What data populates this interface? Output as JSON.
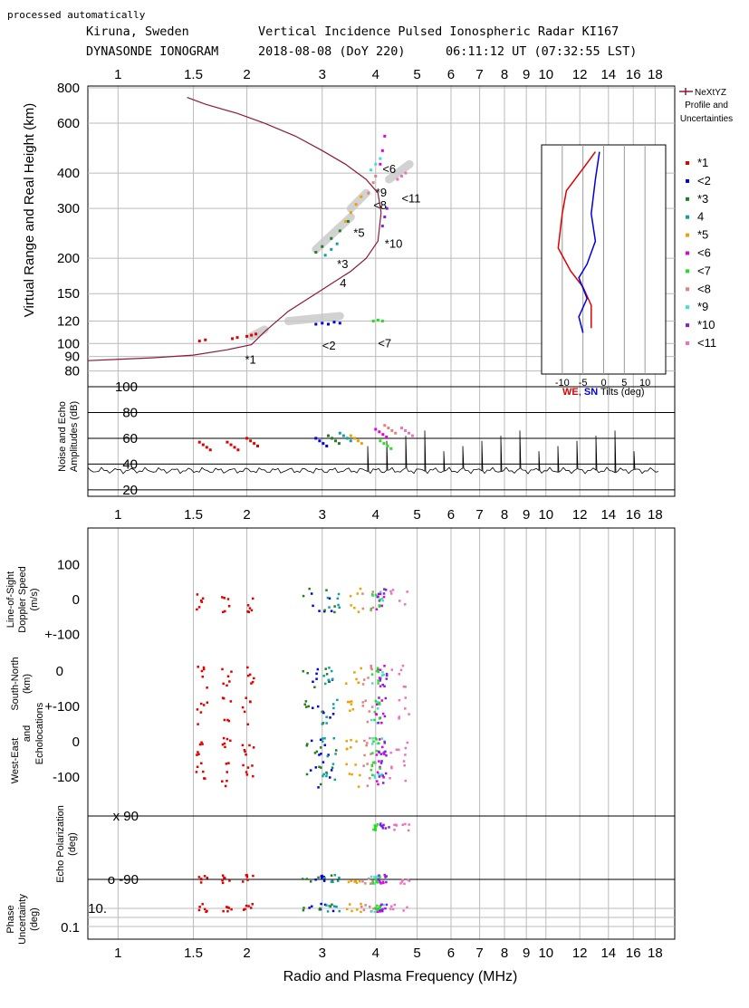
{
  "header": {
    "note": "processed automatically",
    "station": "Kiruna, Sweden",
    "title": "Vertical Incidence Pulsed Ionospheric Radar KI167",
    "kind": "DYNASONDE IONOGRAM",
    "date": "2018-08-08 (DoY 220)",
    "time": "06:11:12 UT (07:32:55 LST)"
  },
  "freq_ticks": [
    "1",
    "1.5",
    "2",
    "3",
    "4",
    "5",
    "6",
    "7",
    "8",
    "9",
    "10",
    "12",
    "14",
    "16",
    "18"
  ],
  "xlabel": "Radio and Plasma Frequency (MHz)",
  "legend": {
    "profile_label": [
      "NeXtYZ",
      "Profile and",
      "Uncertainties"
    ],
    "profile_color": "#8b1a3a",
    "items": [
      {
        "label": "*1",
        "color": "#e00000"
      },
      {
        "label": "<2",
        "color": "#0000e0"
      },
      {
        "label": "*3",
        "color": "#208020"
      },
      {
        "label": "4",
        "color": "#10a0a0"
      },
      {
        "label": "*5",
        "color": "#f0a000"
      },
      {
        "label": "<6",
        "color": "#e000e0"
      },
      {
        "label": "<7",
        "color": "#20e020"
      },
      {
        "label": "<8",
        "color": "#e08080"
      },
      {
        "label": "*9",
        "color": "#40e0d0"
      },
      {
        "label": "*10",
        "color": "#8020e0"
      },
      {
        "label": "<11",
        "color": "#f070c0"
      }
    ]
  },
  "chart_data": [
    {
      "type": "scatter",
      "panel": "ionogram",
      "ylabel": "Virtual Range and Real Height (km)",
      "x_scale": "log",
      "y_scale": "log",
      "xlim": [
        0.85,
        20
      ],
      "ylim": [
        78,
        800
      ],
      "y_ticks": [
        "800",
        "600",
        "400",
        "300",
        "200",
        "150",
        "120",
        "100",
        "90",
        "80"
      ],
      "y_tick_values": [
        800,
        600,
        400,
        300,
        200,
        150,
        120,
        100,
        90,
        80
      ],
      "profile": {
        "name": "NeXtYZ",
        "x": [
          0.85,
          1.2,
          1.5,
          1.8,
          2.05,
          2.2,
          2.5,
          2.9,
          3.2,
          3.5,
          3.8,
          4.05,
          4.12,
          4.05,
          3.8,
          3.4,
          3.0,
          2.6,
          2.2,
          1.9,
          1.6,
          1.45
        ],
        "y": [
          87,
          89,
          91,
          95,
          99,
          110,
          130,
          150,
          165,
          180,
          200,
          230,
          290,
          340,
          380,
          430,
          480,
          540,
          600,
          650,
          700,
          740
        ]
      },
      "echo_labels": [
        {
          "text": "*1",
          "x": 1.98,
          "y": 85
        },
        {
          "text": "<2",
          "x": 3.0,
          "y": 95
        },
        {
          "text": "*3",
          "x": 3.25,
          "y": 185
        },
        {
          "text": "4",
          "x": 3.3,
          "y": 158
        },
        {
          "text": "*5",
          "x": 3.55,
          "y": 238
        },
        {
          "text": "<6",
          "x": 4.15,
          "y": 400
        },
        {
          "text": "<7",
          "x": 4.05,
          "y": 97
        },
        {
          "text": "<8",
          "x": 3.95,
          "y": 298
        },
        {
          "text": "*9",
          "x": 4.0,
          "y": 330
        },
        {
          "text": "*10",
          "x": 4.2,
          "y": 218
        },
        {
          "text": "<11",
          "x": 4.6,
          "y": 315
        }
      ],
      "series": [
        {
          "label": "*1",
          "x": [
            1.55,
            1.6,
            1.85,
            1.9,
            2.0,
            2.05,
            2.1
          ],
          "y": [
            102,
            103,
            104,
            105,
            106,
            107,
            108
          ]
        },
        {
          "label": "<2",
          "x": [
            2.9,
            3.0,
            3.1,
            3.2,
            3.3
          ],
          "y": [
            117,
            118,
            117,
            119,
            118
          ]
        },
        {
          "label": "*3",
          "x": [
            2.9,
            3.0,
            3.15,
            3.3,
            3.45
          ],
          "y": [
            210,
            220,
            235,
            250,
            270
          ]
        },
        {
          "label": "4",
          "x": [
            3.05,
            3.15,
            3.25
          ],
          "y": [
            205,
            215,
            225
          ]
        },
        {
          "label": "*5",
          "x": [
            3.4,
            3.5,
            3.6,
            3.7
          ],
          "y": [
            270,
            290,
            310,
            330
          ]
        },
        {
          "label": "<6",
          "x": [
            4.1,
            4.15,
            4.2
          ],
          "y": [
            430,
            480,
            540
          ]
        },
        {
          "label": "<7",
          "x": [
            3.95,
            4.05,
            4.15
          ],
          "y": [
            120,
            121,
            120
          ]
        },
        {
          "label": "<8",
          "x": [
            3.85,
            3.95,
            4.0
          ],
          "y": [
            340,
            370,
            390
          ]
        },
        {
          "label": "*9",
          "x": [
            3.9,
            4.0,
            4.1
          ],
          "y": [
            410,
            430,
            450
          ]
        },
        {
          "label": "*10",
          "x": [
            4.15,
            4.2,
            4.25
          ],
          "y": [
            260,
            280,
            300
          ]
        },
        {
          "label": "<11",
          "x": [
            4.5,
            4.6,
            4.7
          ],
          "y": [
            380,
            390,
            400
          ]
        }
      ]
    },
    {
      "type": "line",
      "panel": "tilts",
      "xlabel": "Tilts (deg)",
      "xlabel_we": "WE",
      "xlabel_sn": "SN",
      "x_ticks": [
        "-10",
        "-5",
        "0",
        "5",
        "10"
      ],
      "x_tick_values": [
        -10,
        -5,
        0,
        5,
        10
      ],
      "series": [
        {
          "name": "WE",
          "color": "#e00000",
          "x": [
            -2,
            -4,
            -9,
            -10,
            -11,
            -8,
            -5,
            -3,
            -3
          ],
          "y": [
            0.97,
            0.92,
            0.8,
            0.7,
            0.55,
            0.45,
            0.38,
            0.3,
            0.2
          ]
        },
        {
          "name": "SN",
          "color": "#0000e0",
          "x": [
            -1,
            -2,
            -3,
            -2,
            -4,
            -6,
            -4,
            -6,
            -5
          ],
          "y": [
            0.97,
            0.85,
            0.7,
            0.58,
            0.48,
            0.42,
            0.33,
            0.25,
            0.18
          ]
        }
      ]
    },
    {
      "type": "line",
      "panel": "amplitudes",
      "ylabel": [
        "Noise and Echo",
        "Amplitudes (dB)"
      ],
      "ylim": [
        15,
        100
      ],
      "y_ticks": [
        "100",
        "80",
        "60",
        "40",
        "20"
      ],
      "y_tick_values": [
        100,
        80,
        60,
        40,
        20
      ],
      "noise_level": 35
    },
    {
      "type": "scatter",
      "panel": "doppler",
      "ylabel": [
        "Line-of-Sight",
        "Doppler Speed",
        "(m/s)"
      ],
      "y_ticks": [
        "100",
        "0",
        "+-100"
      ],
      "y_tick_values": [
        100,
        0,
        -100
      ]
    },
    {
      "type": "scatter",
      "panel": "echolocations",
      "ylabel_sn": [
        "South-North",
        "(km)"
      ],
      "ylabel_and": "and",
      "ylabel_ech": "Echolocations",
      "ylabel_we": "West-East",
      "sn_ticks": [
        "0",
        "+-100"
      ],
      "we_ticks": [
        "0",
        "-100"
      ]
    },
    {
      "type": "scatter",
      "panel": "polarization",
      "ylabel": [
        "Echo Polarization",
        "(deg)"
      ],
      "y_ticks": [
        "x 90",
        "o -90"
      ]
    },
    {
      "type": "scatter",
      "panel": "phase",
      "ylabel": [
        "Phase",
        "Uncertainty",
        "(deg)"
      ],
      "y_ticks": [
        "10.",
        "0.1"
      ]
    }
  ]
}
